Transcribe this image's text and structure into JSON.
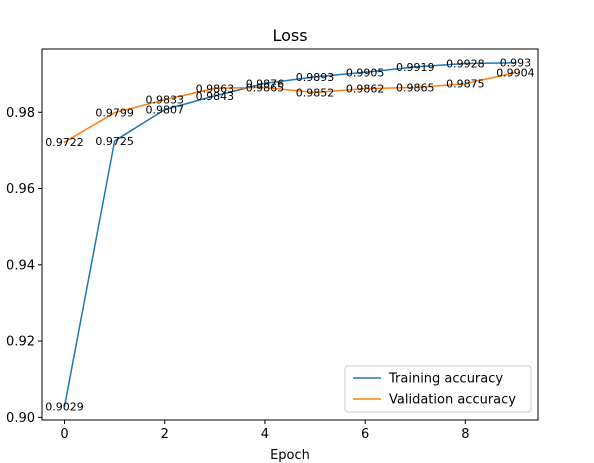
{
  "chart_data": {
    "type": "line",
    "title": "Loss",
    "xlabel": "Epoch",
    "ylabel": "",
    "x": [
      0,
      1,
      2,
      3,
      4,
      5,
      6,
      7,
      8,
      9
    ],
    "xlim": [
      -0.45,
      9.45
    ],
    "ylim": [
      0.8993,
      0.9966
    ],
    "xticks": [
      0,
      2,
      4,
      6,
      8
    ],
    "yticks": [
      0.9,
      0.92,
      0.94,
      0.96,
      0.98
    ],
    "xtick_labels": [
      "0",
      "2",
      "4",
      "6",
      "8"
    ],
    "ytick_labels": [
      "0.90",
      "0.92",
      "0.94",
      "0.96",
      "0.98"
    ],
    "grid": false,
    "legend_position": "bottom-right",
    "series": [
      {
        "name": "Training accuracy",
        "color": "#1f77b4",
        "values": [
          0.9029,
          0.9725,
          0.9807,
          0.9843,
          0.9876,
          0.9893,
          0.9905,
          0.9919,
          0.9928,
          0.993
        ],
        "labels": [
          "0.9029",
          "0.9725",
          "0.9807",
          "0.9843",
          "0.9876",
          "0.9893",
          "0.9905",
          "0.9919",
          "0.9928",
          "0.993"
        ]
      },
      {
        "name": "Validation accuracy",
        "color": "#ff7f0e",
        "values": [
          0.9722,
          0.9799,
          0.9833,
          0.9863,
          0.9865,
          0.9852,
          0.9862,
          0.9865,
          0.9875,
          0.9904
        ],
        "labels": [
          "0.9722",
          "0.9799",
          "0.9833",
          "0.9863",
          "0.9865",
          "0.9852",
          "0.9862",
          "0.9865",
          "0.9875",
          "0.9904"
        ]
      }
    ]
  }
}
